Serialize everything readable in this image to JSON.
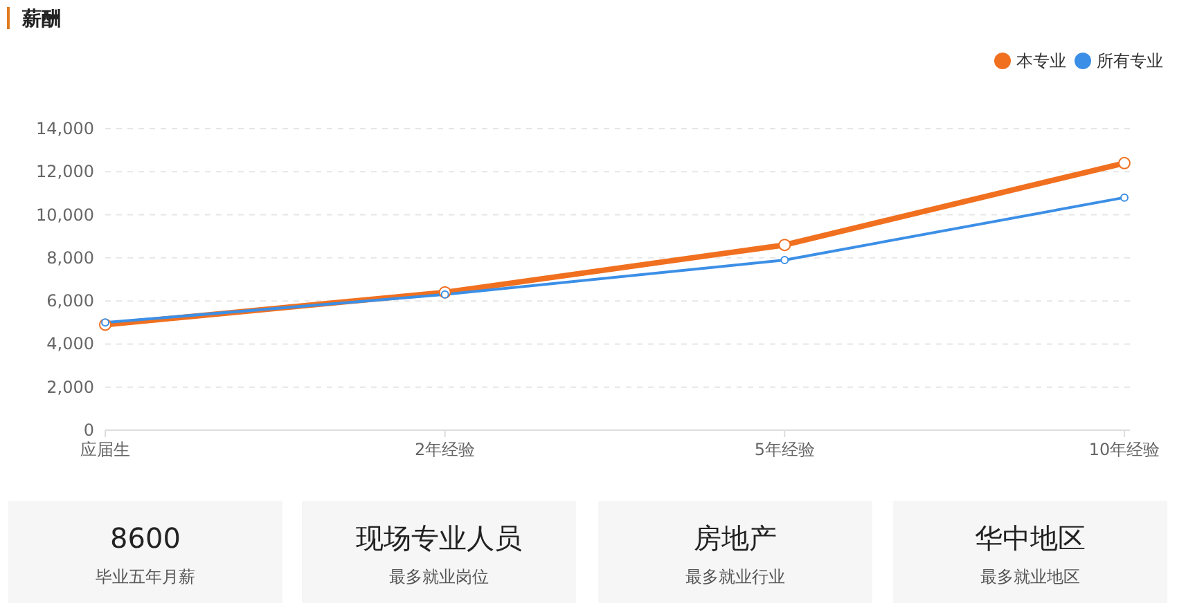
{
  "chart_data": [
    {
      "type": "line",
      "title": "薪酬",
      "categories": [
        "应届生",
        "2年经验",
        "5年经验",
        "10年经验"
      ],
      "series": [
        {
          "name": "本专业",
          "color": "#f07020",
          "values": [
            4900,
            6400,
            8600,
            12400
          ]
        },
        {
          "name": "所有专业",
          "color": "#3c8fe6",
          "values": [
            5000,
            6300,
            7900,
            10800
          ]
        }
      ],
      "ylim": [
        0,
        14000
      ],
      "yticks": [
        0,
        {
          "value": 2000,
          "label": "2,000"
        },
        {
          "value": 4000,
          "label": "4,000"
        },
        {
          "value": 6000,
          "label": "6,000"
        },
        {
          "value": 8000,
          "label": "8,000"
        },
        {
          "value": 10000,
          "label": "10,000"
        },
        {
          "value": 12000,
          "label": "12,000"
        },
        {
          "value": 14000,
          "label": "14,000"
        }
      ],
      "grid": "y",
      "legend": "top right",
      "marker": "circle",
      "line_style": "solid"
    },
    {
      "type": "other",
      "annotations": [
        "8600",
        "毕业五年月薪",
        "现场专业人员",
        "最多就业岗位",
        "房地产",
        "最多就业行业",
        "华中地区",
        "最多就业地区"
      ]
    }
  ]
}
